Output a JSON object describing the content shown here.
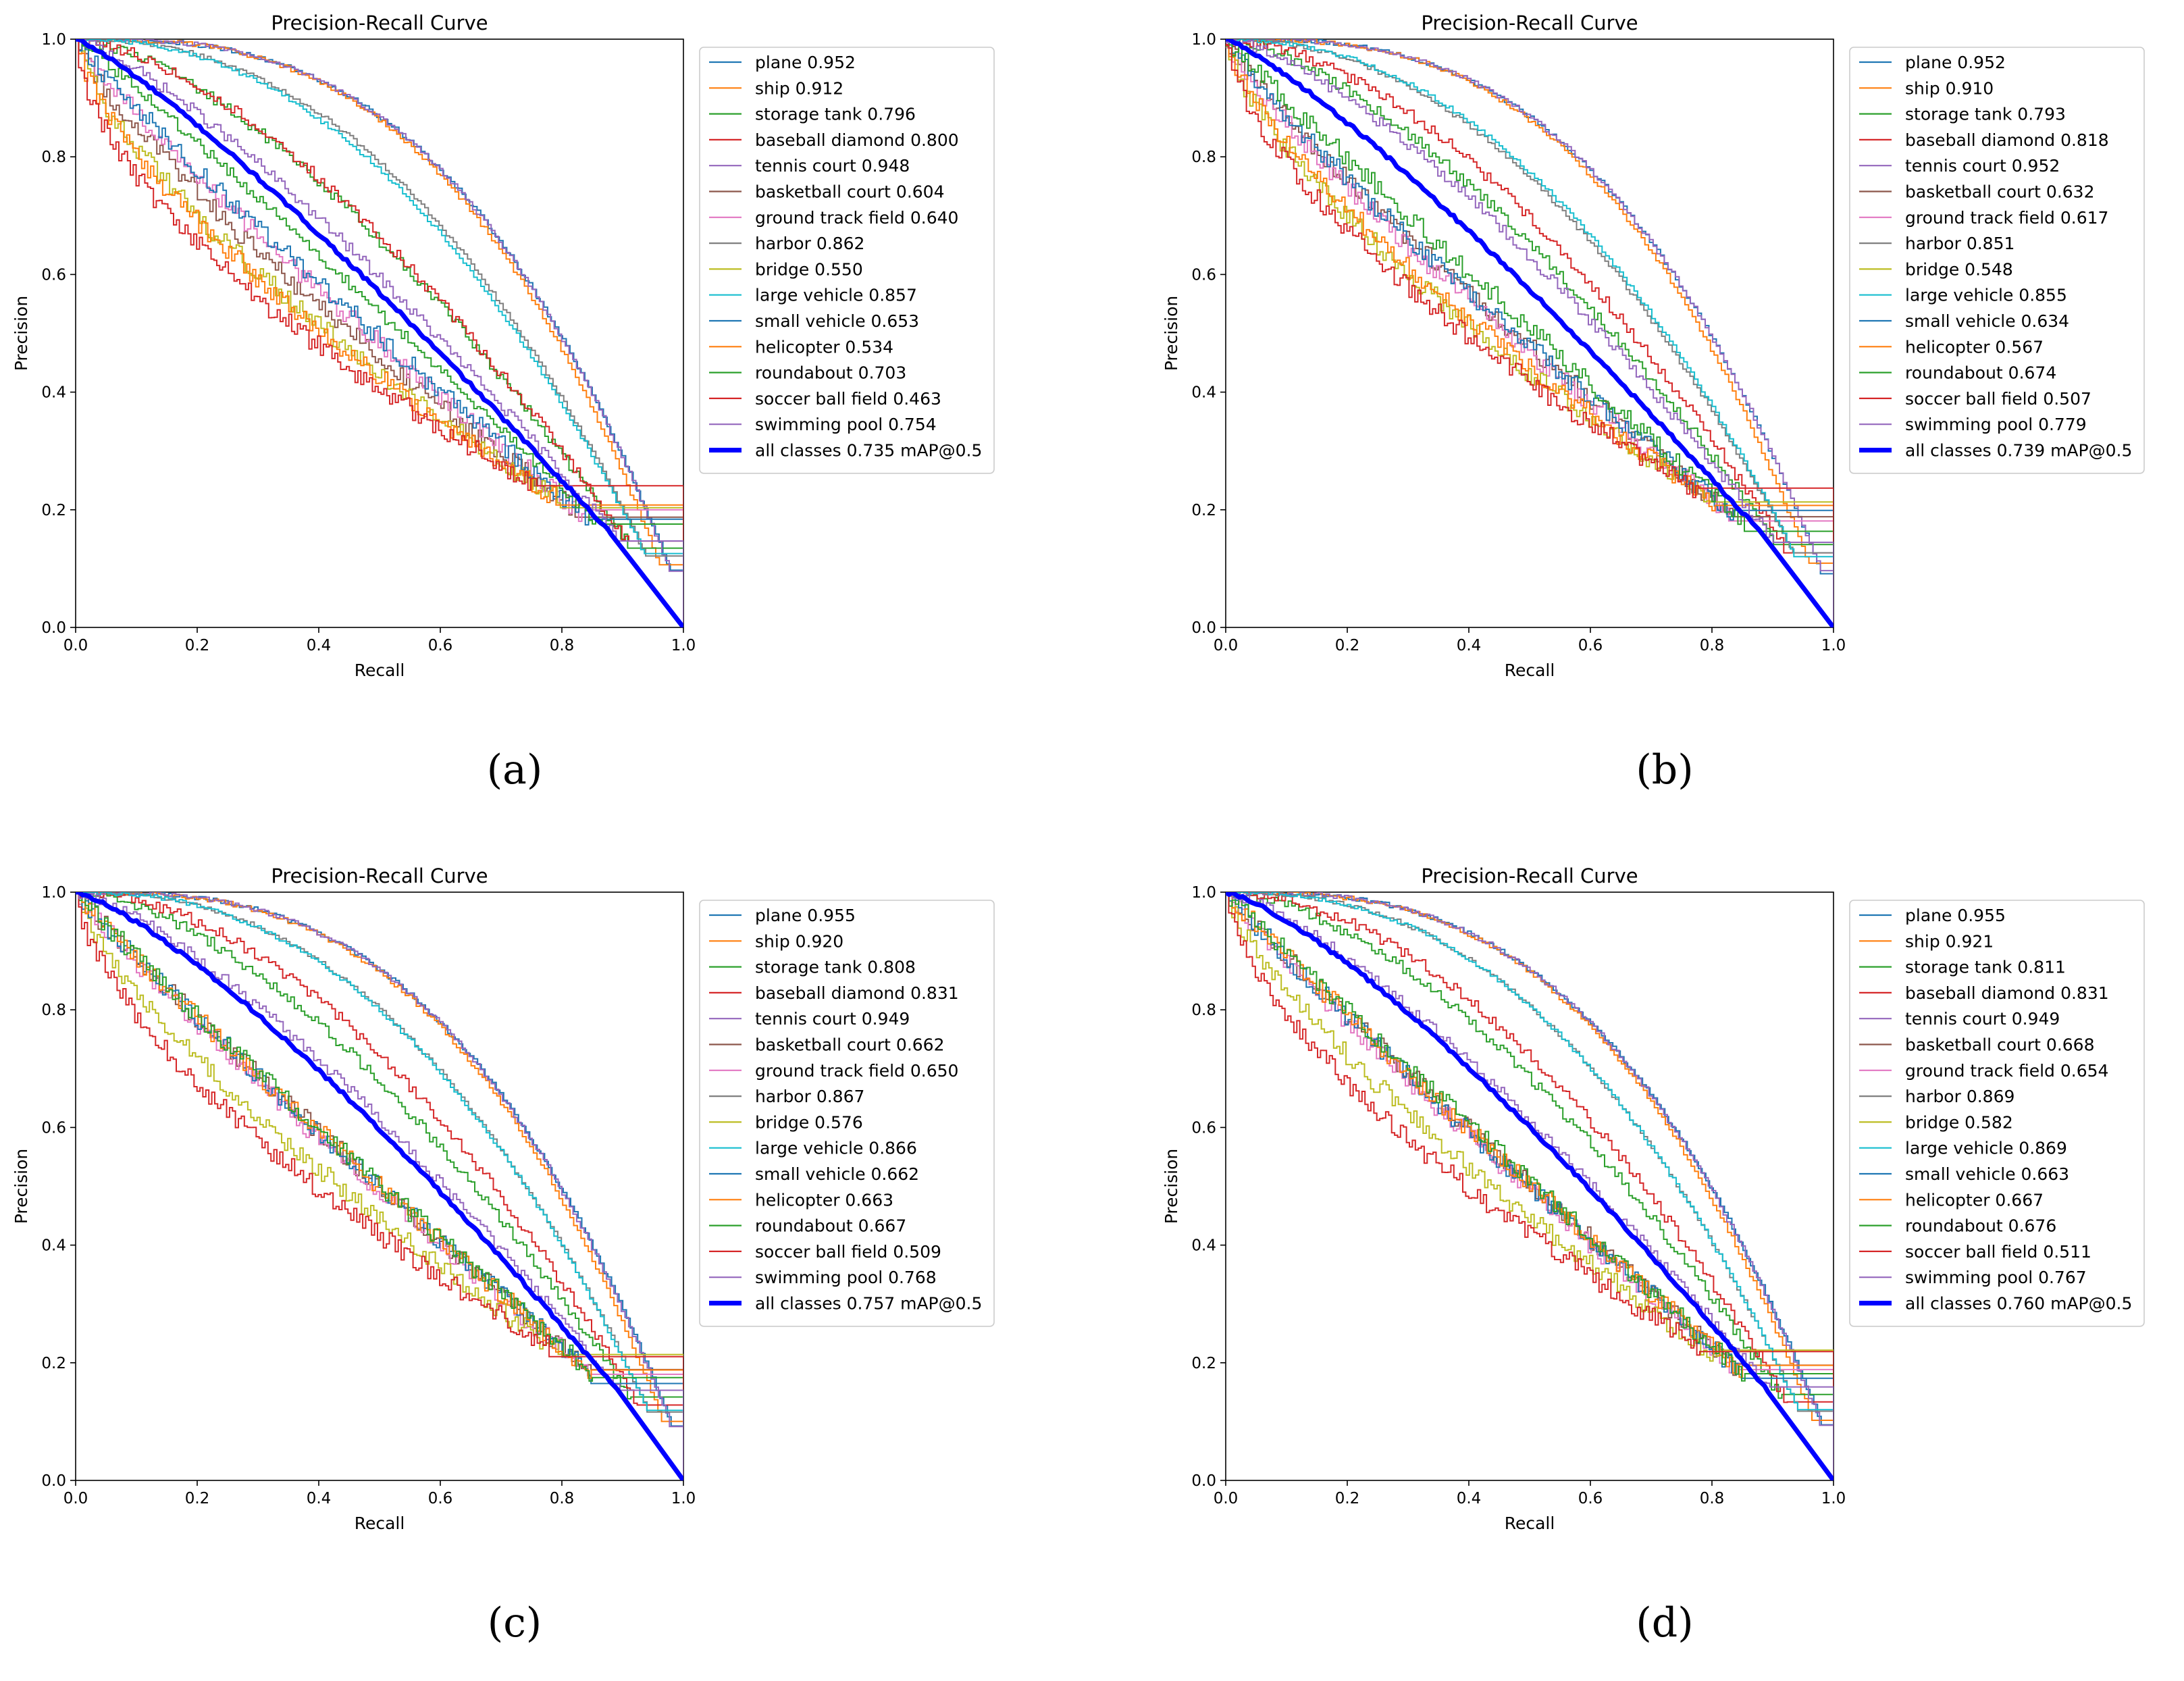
{
  "colors": {
    "series": [
      "#1f77b4",
      "#ff7f0e",
      "#2ca02c",
      "#d62728",
      "#9467bd",
      "#8c564b",
      "#e377c2",
      "#7f7f7f",
      "#bcbd22",
      "#17becf",
      "#1f77b4",
      "#ff7f0e",
      "#2ca02c",
      "#d62728",
      "#9467bd"
    ],
    "all_classes": "#0000ff"
  },
  "chart_data": [
    {
      "type": "line",
      "panel_label": "(a)",
      "title": "Precision-Recall Curve",
      "xlabel": "Recall",
      "ylabel": "Precision",
      "xlim": [
        0,
        1
      ],
      "ylim": [
        0,
        1
      ],
      "xticks": [
        "0.0",
        "0.2",
        "0.4",
        "0.6",
        "0.8",
        "1.0"
      ],
      "yticks": [
        "0.0",
        "0.2",
        "0.4",
        "0.6",
        "0.8",
        "1.0"
      ],
      "legend_position": "outside-right",
      "series": [
        {
          "name": "plane",
          "ap": 0.952,
          "label": "plane 0.952"
        },
        {
          "name": "ship",
          "ap": 0.912,
          "label": "ship 0.912"
        },
        {
          "name": "storage tank",
          "ap": 0.796,
          "label": "storage tank 0.796"
        },
        {
          "name": "baseball diamond",
          "ap": 0.8,
          "label": "baseball diamond 0.800"
        },
        {
          "name": "tennis court",
          "ap": 0.948,
          "label": "tennis court 0.948"
        },
        {
          "name": "basketball court",
          "ap": 0.604,
          "label": "basketball court 0.604"
        },
        {
          "name": "ground track field",
          "ap": 0.64,
          "label": "ground track field 0.640"
        },
        {
          "name": "harbor",
          "ap": 0.862,
          "label": "harbor 0.862"
        },
        {
          "name": "bridge",
          "ap": 0.55,
          "label": "bridge 0.550"
        },
        {
          "name": "large vehicle",
          "ap": 0.857,
          "label": "large vehicle 0.857"
        },
        {
          "name": "small vehicle",
          "ap": 0.653,
          "label": "small vehicle 0.653"
        },
        {
          "name": "helicopter",
          "ap": 0.534,
          "label": "helicopter 0.534"
        },
        {
          "name": "roundabout",
          "ap": 0.703,
          "label": "roundabout 0.703"
        },
        {
          "name": "soccer ball field",
          "ap": 0.463,
          "label": "soccer ball field 0.463"
        },
        {
          "name": "swimming pool",
          "ap": 0.754,
          "label": "swimming pool 0.754"
        }
      ],
      "all_classes": {
        "name": "all classes",
        "ap": 0.735,
        "label": "all classes 0.735 mAP@0.5"
      }
    },
    {
      "type": "line",
      "panel_label": "(b)",
      "title": "Precision-Recall Curve",
      "xlabel": "Recall",
      "ylabel": "Precision",
      "xlim": [
        0,
        1
      ],
      "ylim": [
        0,
        1
      ],
      "xticks": [
        "0.0",
        "0.2",
        "0.4",
        "0.6",
        "0.8",
        "1.0"
      ],
      "yticks": [
        "0.0",
        "0.2",
        "0.4",
        "0.6",
        "0.8",
        "1.0"
      ],
      "legend_position": "outside-right",
      "series": [
        {
          "name": "plane",
          "ap": 0.952,
          "label": "plane 0.952"
        },
        {
          "name": "ship",
          "ap": 0.91,
          "label": "ship 0.910"
        },
        {
          "name": "storage tank",
          "ap": 0.793,
          "label": "storage tank 0.793"
        },
        {
          "name": "baseball diamond",
          "ap": 0.818,
          "label": "baseball diamond 0.818"
        },
        {
          "name": "tennis court",
          "ap": 0.952,
          "label": "tennis court 0.952"
        },
        {
          "name": "basketball court",
          "ap": 0.632,
          "label": "basketball court 0.632"
        },
        {
          "name": "ground track field",
          "ap": 0.617,
          "label": "ground track field 0.617"
        },
        {
          "name": "harbor",
          "ap": 0.851,
          "label": "harbor 0.851"
        },
        {
          "name": "bridge",
          "ap": 0.548,
          "label": "bridge 0.548"
        },
        {
          "name": "large vehicle",
          "ap": 0.855,
          "label": "large vehicle 0.855"
        },
        {
          "name": "small vehicle",
          "ap": 0.634,
          "label": "small vehicle 0.634"
        },
        {
          "name": "helicopter",
          "ap": 0.567,
          "label": "helicopter 0.567"
        },
        {
          "name": "roundabout",
          "ap": 0.674,
          "label": "roundabout 0.674"
        },
        {
          "name": "soccer ball field",
          "ap": 0.507,
          "label": "soccer ball field 0.507"
        },
        {
          "name": "swimming pool",
          "ap": 0.779,
          "label": "swimming pool 0.779"
        }
      ],
      "all_classes": {
        "name": "all classes",
        "ap": 0.739,
        "label": "all classes 0.739 mAP@0.5"
      }
    },
    {
      "type": "line",
      "panel_label": "(c)",
      "title": "Precision-Recall Curve",
      "xlabel": "Recall",
      "ylabel": "Precision",
      "xlim": [
        0,
        1
      ],
      "ylim": [
        0,
        1
      ],
      "xticks": [
        "0.0",
        "0.2",
        "0.4",
        "0.6",
        "0.8",
        "1.0"
      ],
      "yticks": [
        "0.0",
        "0.2",
        "0.4",
        "0.6",
        "0.8",
        "1.0"
      ],
      "legend_position": "outside-right",
      "series": [
        {
          "name": "plane",
          "ap": 0.955,
          "label": "plane 0.955"
        },
        {
          "name": "ship",
          "ap": 0.92,
          "label": "ship 0.920"
        },
        {
          "name": "storage tank",
          "ap": 0.808,
          "label": "storage tank 0.808"
        },
        {
          "name": "baseball diamond",
          "ap": 0.831,
          "label": "baseball diamond 0.831"
        },
        {
          "name": "tennis court",
          "ap": 0.949,
          "label": "tennis court 0.949"
        },
        {
          "name": "basketball court",
          "ap": 0.662,
          "label": "basketball court 0.662"
        },
        {
          "name": "ground track field",
          "ap": 0.65,
          "label": "ground track field 0.650"
        },
        {
          "name": "harbor",
          "ap": 0.867,
          "label": "harbor 0.867"
        },
        {
          "name": "bridge",
          "ap": 0.576,
          "label": "bridge 0.576"
        },
        {
          "name": "large vehicle",
          "ap": 0.866,
          "label": "large vehicle 0.866"
        },
        {
          "name": "small vehicle",
          "ap": 0.662,
          "label": "small vehicle 0.662"
        },
        {
          "name": "helicopter",
          "ap": 0.663,
          "label": "helicopter 0.663"
        },
        {
          "name": "roundabout",
          "ap": 0.667,
          "label": "roundabout 0.667"
        },
        {
          "name": "soccer ball field",
          "ap": 0.509,
          "label": "soccer ball field 0.509"
        },
        {
          "name": "swimming pool",
          "ap": 0.768,
          "label": "swimming pool 0.768"
        }
      ],
      "all_classes": {
        "name": "all classes",
        "ap": 0.757,
        "label": "all classes 0.757 mAP@0.5"
      }
    },
    {
      "type": "line",
      "panel_label": "(d)",
      "title": "Precision-Recall Curve",
      "xlabel": "Recall",
      "ylabel": "Precision",
      "xlim": [
        0,
        1
      ],
      "ylim": [
        0,
        1
      ],
      "xticks": [
        "0.0",
        "0.2",
        "0.4",
        "0.6",
        "0.8",
        "1.0"
      ],
      "yticks": [
        "0.0",
        "0.2",
        "0.4",
        "0.6",
        "0.8",
        "1.0"
      ],
      "legend_position": "outside-right",
      "series": [
        {
          "name": "plane",
          "ap": 0.955,
          "label": "plane 0.955"
        },
        {
          "name": "ship",
          "ap": 0.921,
          "label": "ship 0.921"
        },
        {
          "name": "storage tank",
          "ap": 0.811,
          "label": "storage tank 0.811"
        },
        {
          "name": "baseball diamond",
          "ap": 0.831,
          "label": "baseball diamond 0.831"
        },
        {
          "name": "tennis court",
          "ap": 0.949,
          "label": "tennis court 0.949"
        },
        {
          "name": "basketball court",
          "ap": 0.668,
          "label": "basketball court 0.668"
        },
        {
          "name": "ground track field",
          "ap": 0.654,
          "label": "ground track field 0.654"
        },
        {
          "name": "harbor",
          "ap": 0.869,
          "label": "harbor 0.869"
        },
        {
          "name": "bridge",
          "ap": 0.582,
          "label": "bridge 0.582"
        },
        {
          "name": "large vehicle",
          "ap": 0.869,
          "label": "large vehicle 0.869"
        },
        {
          "name": "small vehicle",
          "ap": 0.663,
          "label": "small vehicle 0.663"
        },
        {
          "name": "helicopter",
          "ap": 0.667,
          "label": "helicopter 0.667"
        },
        {
          "name": "roundabout",
          "ap": 0.676,
          "label": "roundabout 0.676"
        },
        {
          "name": "soccer ball field",
          "ap": 0.511,
          "label": "soccer ball field 0.511"
        },
        {
          "name": "swimming pool",
          "ap": 0.767,
          "label": "swimming pool 0.767"
        }
      ],
      "all_classes": {
        "name": "all classes",
        "ap": 0.76,
        "label": "all classes 0.760 mAP@0.5"
      }
    }
  ]
}
